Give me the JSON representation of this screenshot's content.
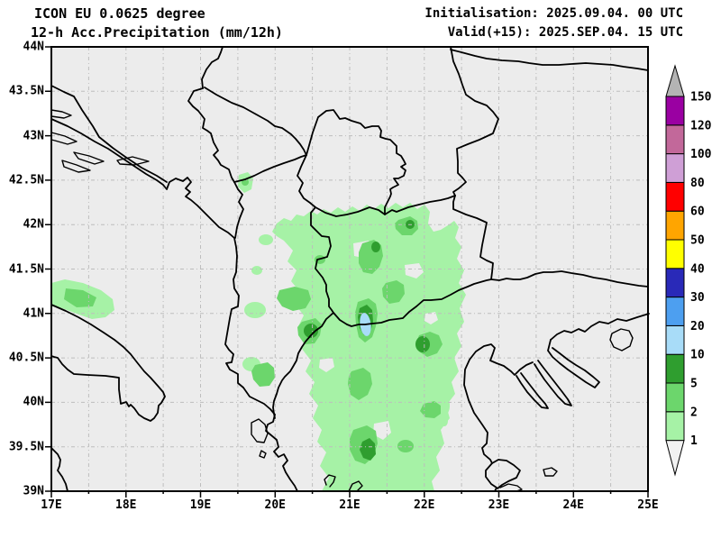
{
  "header": {
    "model_line": "ICON EU 0.0625 degree",
    "product_line": "12-h Acc.Precipitation (mm/12h)",
    "init_line": "Initialisation: 2025.09.04. 00 UTC",
    "valid_line": "Valid(+15): 2025.SEP.04. 15 UTC"
  },
  "axes": {
    "lon_labels": [
      "17E",
      "18E",
      "19E",
      "20E",
      "21E",
      "22E",
      "23E",
      "24E",
      "25E"
    ],
    "lat_labels": [
      "44N",
      "43.5N",
      "43N",
      "42.5N",
      "42N",
      "41.5N",
      "41N",
      "40.5N",
      "40N",
      "39.5N",
      "39N"
    ],
    "lon_range": [
      17,
      25
    ],
    "lat_range": [
      39,
      44
    ],
    "grid_step_deg": 0.5
  },
  "colorbar": {
    "unit": "mm/12h",
    "labels": [
      "1",
      "2",
      "5",
      "10",
      "20",
      "30",
      "40",
      "50",
      "60",
      "80",
      "100",
      "120",
      "150"
    ],
    "colors": [
      "#a6f2a6",
      "#6cd66c",
      "#2f9e2f",
      "#a8dcf8",
      "#4d9ff0",
      "#2929b8",
      "#ffff00",
      "#ffa500",
      "#ff0000",
      "#cf9fd6",
      "#c2689a",
      "#9a00a2"
    ],
    "under_color": "#f2f2f2",
    "over_color": "#b4b4b4"
  },
  "colors": {
    "light_green": "#a6f2a6",
    "mid_green": "#6cd66c",
    "dark_green": "#2f9e2f",
    "light_blue": "#a8dcf8",
    "mid_blue": "#4d9ff0",
    "dark_blue": "#2929b8",
    "yellow": "#ffff00",
    "orange": "#ffa500",
    "red": "#ff0000",
    "lilac": "#cf9fd6",
    "mauve": "#c2689a",
    "purple": "#9a00a2",
    "over_gray": "#b4b4b4",
    "under_white": "#f2f2f2",
    "map_bg": "#ececec",
    "grid": "#bdbdbd",
    "line": "#000000"
  }
}
